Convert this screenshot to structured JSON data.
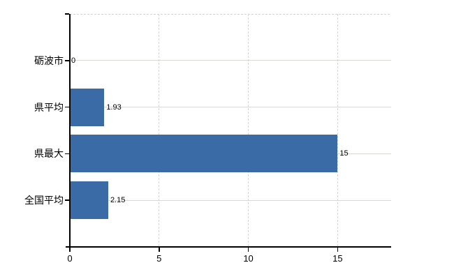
{
  "chart_data": {
    "type": "bar",
    "orientation": "horizontal",
    "title": "",
    "xlabel": "",
    "ylabel": "",
    "legend_position": "none",
    "categories": [
      "砺波市",
      "県平均",
      "県最大",
      "全国平均"
    ],
    "values": [
      0,
      1.93,
      15,
      2.15
    ],
    "value_labels": [
      "0",
      "1.93",
      "15",
      "2.15"
    ],
    "x_ticks": [
      0,
      5,
      10,
      15
    ],
    "x_tick_labels": [
      "0",
      "5",
      "10",
      "15"
    ],
    "xlim": [
      0,
      18
    ],
    "grid": {
      "horizontal_style": "solid",
      "vertical_style": "dashed",
      "top_border_style": "dashed"
    },
    "colors": {
      "bar": "#3b6ba6",
      "horizontal_grid": "#d6dbd0",
      "vertical_grid": "#d8d2d8",
      "top_border": "#d3d3d3",
      "axis": "#000000",
      "text": "#000000",
      "background": "#ffffff"
    }
  }
}
